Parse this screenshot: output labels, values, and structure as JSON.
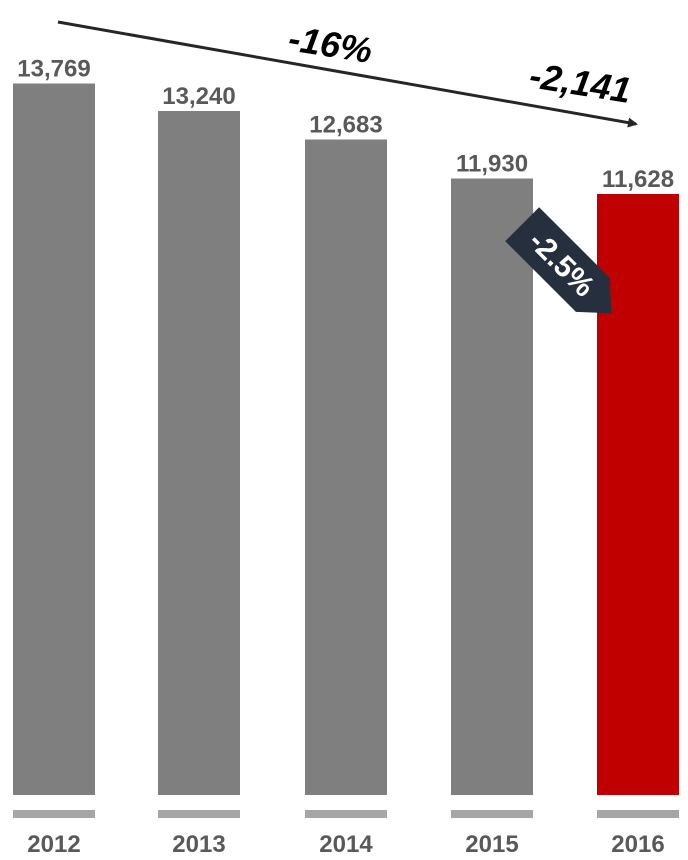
{
  "chart_data": {
    "type": "bar",
    "categories": [
      "2012",
      "2013",
      "2014",
      "2015",
      "2016"
    ],
    "values": [
      13769,
      13240,
      12683,
      11930,
      11628
    ],
    "value_labels": [
      "13,769",
      "13,240",
      "12,683",
      "11,930",
      "11,628"
    ],
    "highlight_index": 4,
    "ylim": [
      0,
      14400
    ],
    "title": "",
    "xlabel": "",
    "ylabel": "",
    "grid": false,
    "annotations": {
      "total_change_pct": "-16%",
      "total_change_abs": "-2,141",
      "last_change_pct": "-2.5%"
    }
  },
  "colors": {
    "bar": "#7f7f7f",
    "highlight": "#c00000",
    "axis_tick": "#a6a6a6",
    "label": "#595959",
    "callout": "#262f3d",
    "trend_arrow": "#262626"
  }
}
